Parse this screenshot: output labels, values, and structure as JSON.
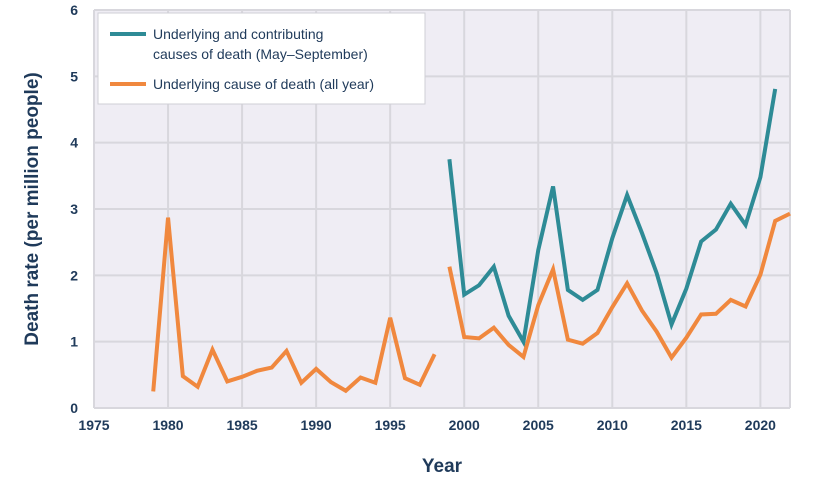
{
  "chart_data": {
    "type": "line",
    "title": "",
    "xlabel": "Year",
    "ylabel": "Death rate (per million people)",
    "xlim": [
      1975,
      2022
    ],
    "ylim": [
      0,
      6
    ],
    "xticks": [
      1975,
      1980,
      1985,
      1990,
      1995,
      2000,
      2005,
      2010,
      2015,
      2020
    ],
    "yticks": [
      0,
      1,
      2,
      3,
      4,
      5,
      6
    ],
    "grid": true,
    "legend_position": "top-left",
    "series": [
      {
        "name": "Underlying and contributing causes of death (May–September)",
        "legend_lines": [
          "Underlying and contributing",
          "causes of death (May–September)"
        ],
        "color": "#2e8b96",
        "x": [
          1999,
          2000,
          2001,
          2002,
          2003,
          2004,
          2005,
          2006,
          2007,
          2008,
          2009,
          2010,
          2011,
          2012,
          2013,
          2014,
          2015,
          2016,
          2017,
          2018,
          2019,
          2020,
          2021
        ],
        "y": [
          3.75,
          1.71,
          1.85,
          2.13,
          1.39,
          1.0,
          2.38,
          3.34,
          1.78,
          1.63,
          1.78,
          2.56,
          3.21,
          2.64,
          2.03,
          1.26,
          1.8,
          2.51,
          2.69,
          3.08,
          2.76,
          3.48,
          4.81
        ]
      },
      {
        "name": "Underlying cause of death (all year)",
        "legend_lines": [
          "Underlying cause of death (all year)"
        ],
        "color": "#f0883e",
        "segments": [
          {
            "x": [
              1979,
              1980,
              1981,
              1982,
              1983,
              1984,
              1985,
              1986,
              1987,
              1988,
              1989,
              1990,
              1991,
              1992,
              1993,
              1994,
              1995,
              1996,
              1997,
              1998
            ],
            "y": [
              0.25,
              2.87,
              0.48,
              0.32,
              0.88,
              0.4,
              0.47,
              0.56,
              0.61,
              0.86,
              0.38,
              0.59,
              0.39,
              0.26,
              0.46,
              0.38,
              1.36,
              0.45,
              0.35,
              0.81
            ]
          },
          {
            "x": [
              1999,
              2000,
              2001,
              2002,
              2003,
              2004,
              2005,
              2006,
              2007,
              2008,
              2009,
              2010,
              2011,
              2012,
              2013,
              2014,
              2015,
              2016,
              2017,
              2018,
              2019,
              2020,
              2021,
              2022
            ],
            "y": [
              2.13,
              1.07,
              1.05,
              1.21,
              0.95,
              0.77,
              1.55,
              2.09,
              1.03,
              0.97,
              1.13,
              1.52,
              1.88,
              1.47,
              1.15,
              0.76,
              1.06,
              1.41,
              1.42,
              1.63,
              1.53,
              2.01,
              2.82,
              2.93
            ]
          }
        ]
      }
    ],
    "colors": {
      "plot_background": "#efedf4",
      "grid": "#d8d7dd",
      "text": "#1f3a5a"
    }
  }
}
